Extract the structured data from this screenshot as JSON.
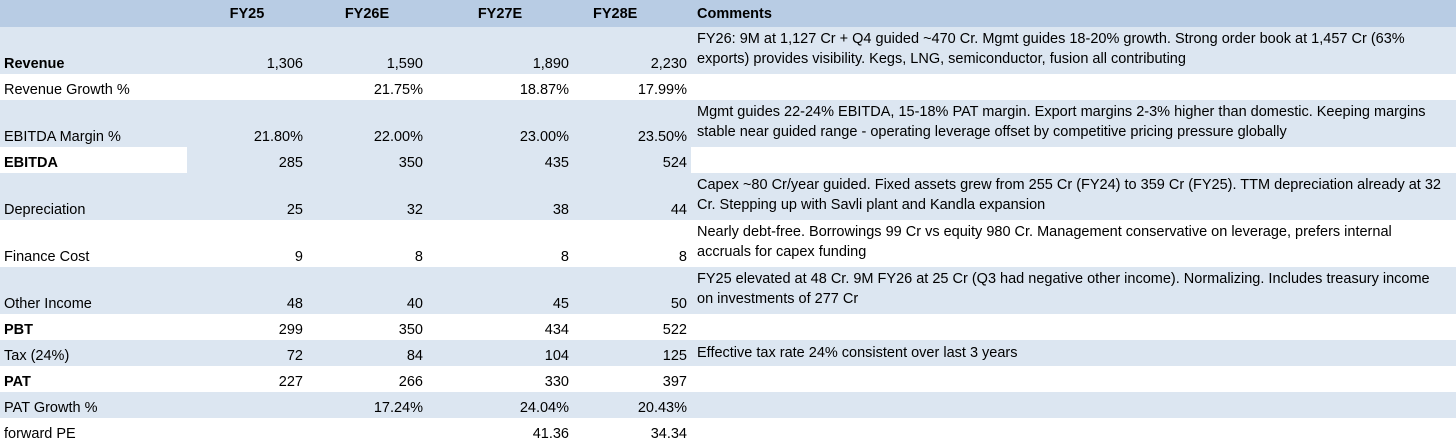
{
  "header": {
    "label": "",
    "years": [
      "FY25",
      "FY26E",
      "FY27E",
      "FY28E"
    ],
    "comments": "Comments"
  },
  "rows": [
    {
      "label": "Revenue",
      "values": [
        "1,306",
        "1,590",
        "1,890",
        "2,230"
      ],
      "comment": "FY26: 9M at 1,127 Cr + Q4 guided ~470 Cr. Mgmt guides 18-20% growth. Strong order book at 1,457 Cr (63% exports) provides visibility. Kegs, LNG, semiconductor, fusion all contributing"
    },
    {
      "label": "Revenue Growth %",
      "values": [
        "",
        "21.75%",
        "18.87%",
        "17.99%"
      ],
      "comment": ""
    },
    {
      "label": "EBITDA Margin %",
      "values": [
        "21.80%",
        "22.00%",
        "23.00%",
        "23.50%"
      ],
      "comment": "Mgmt guides 22-24% EBITDA, 15-18% PAT margin. Export margins 2-3% higher than domestic. Keeping margins stable near guided range - operating leverage offset by competitive pricing pressure globally"
    },
    {
      "label": "EBITDA",
      "values": [
        "285",
        "350",
        "435",
        "524"
      ],
      "comment": ""
    },
    {
      "label": "Depreciation",
      "values": [
        "25",
        "32",
        "38",
        "44"
      ],
      "comment": "Capex ~80 Cr/year guided. Fixed assets grew from 255 Cr (FY24) to 359 Cr (FY25). TTM depreciation already at 32 Cr. Stepping up with Savli plant and Kandla expansion"
    },
    {
      "label": "Finance Cost",
      "values": [
        "9",
        "8",
        "8",
        "8"
      ],
      "comment": "Nearly debt-free. Borrowings 99 Cr vs equity 980 Cr. Management conservative on leverage, prefers internal accruals for capex funding"
    },
    {
      "label": "Other Income",
      "values": [
        "48",
        "40",
        "45",
        "50"
      ],
      "comment": "FY25 elevated at 48 Cr. 9M FY26 at 25 Cr (Q3 had negative other income). Normalizing. Includes treasury income on investments of 277 Cr"
    },
    {
      "label": "PBT",
      "values": [
        "299",
        "350",
        "434",
        "522"
      ],
      "comment": ""
    },
    {
      "label": "Tax (24%)",
      "values": [
        "72",
        "84",
        "104",
        "125"
      ],
      "comment": "Effective tax rate 24% consistent over last 3 years"
    },
    {
      "label": "PAT",
      "values": [
        "227",
        "266",
        "330",
        "397"
      ],
      "comment": ""
    },
    {
      "label": "PAT Growth %",
      "values": [
        "",
        "17.24%",
        "24.04%",
        "20.43%"
      ],
      "comment": ""
    },
    {
      "label": "forward PE",
      "values": [
        "",
        "",
        "41.36",
        "34.34"
      ],
      "comment": ""
    }
  ]
}
